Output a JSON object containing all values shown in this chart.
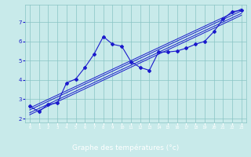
{
  "xlabel": "Graphe des températures (°c)",
  "bg_color": "#c8eaea",
  "line_color": "#1a1acc",
  "bottom_bar_color": "#2020aa",
  "measured_x": [
    0,
    1,
    2,
    3,
    4,
    5,
    6,
    7,
    8,
    9,
    10,
    11,
    12,
    13,
    14,
    15,
    16,
    17,
    18,
    19,
    20,
    21,
    22,
    23
  ],
  "measured_y": [
    2.65,
    2.35,
    2.75,
    2.8,
    3.85,
    4.05,
    4.65,
    5.35,
    6.25,
    5.85,
    5.75,
    4.95,
    4.65,
    4.5,
    5.45,
    5.45,
    5.5,
    5.65,
    5.85,
    6.0,
    6.5,
    7.15,
    7.55,
    7.6
  ],
  "reg_lines": [
    {
      "x": [
        0,
        23
      ],
      "y": [
        2.3,
        7.45
      ]
    },
    {
      "x": [
        0,
        23
      ],
      "y": [
        2.45,
        7.58
      ]
    },
    {
      "x": [
        0,
        23
      ],
      "y": [
        2.55,
        7.68
      ]
    },
    {
      "x": [
        0,
        23
      ],
      "y": [
        2.2,
        7.35
      ]
    }
  ],
  "xlim": [
    -0.5,
    23.5
  ],
  "ylim": [
    1.8,
    7.9
  ],
  "yticks": [
    2,
    3,
    4,
    5,
    6,
    7
  ],
  "xticks": [
    0,
    1,
    2,
    3,
    4,
    5,
    6,
    7,
    8,
    9,
    10,
    11,
    12,
    13,
    14,
    15,
    16,
    17,
    18,
    19,
    20,
    21,
    22,
    23
  ]
}
